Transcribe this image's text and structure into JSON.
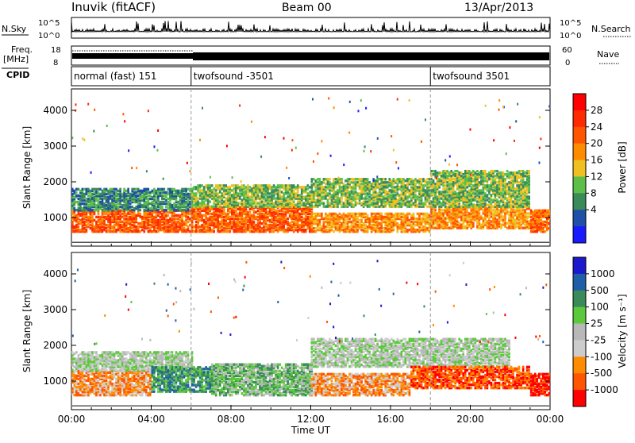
{
  "header": {
    "station": "Inuvik (fitACF)",
    "beam": "Beam 00",
    "date": "13/Apr/2013"
  },
  "top_panels": {
    "nsky_label": "N.Sky",
    "nsky_ticks": [
      "10^5",
      "10^0"
    ],
    "nsearch_label": "N.Search",
    "nsearch_ticks": [
      "10^5",
      "10^0"
    ],
    "freq_label": "Freq.",
    "freq_unit": "[MHz]",
    "freq_ticks": [
      "18",
      "8"
    ],
    "nave_label": "Nave",
    "nave_ticks": [
      "60",
      "0"
    ],
    "cpid_label": "CPID",
    "cpid_segments": [
      {
        "label": "normal (fast) 151",
        "start_hour": 0,
        "end_hour": 6
      },
      {
        "label": "twofsound -3501",
        "start_hour": 6,
        "end_hour": 18
      },
      {
        "label": "twofsound 3501",
        "start_hour": 18,
        "end_hour": 24
      }
    ]
  },
  "colors": {
    "power": [
      "#1a1aff",
      "#1f4fa8",
      "#3a8a5a",
      "#5bbf4a",
      "#f0c020",
      "#ff8c00",
      "#ff5500",
      "#ff2a00",
      "#ff0000"
    ],
    "velocity": [
      "#ff0000",
      "#ff5500",
      "#ff8c00",
      "#cccccc",
      "#b8b8b8",
      "#5cc93d",
      "#3a8a5a",
      "#1f5fa8",
      "#1a1acc"
    ]
  },
  "chart_data": [
    {
      "type": "heatmap",
      "name_ref": "power",
      "ylabel": "Slant Range [km]",
      "ylim": [
        200,
        4600
      ],
      "yticks": [
        1000,
        2000,
        3000,
        4000
      ],
      "xlim": [
        0,
        24
      ],
      "xticks": [
        "00:00",
        "04:00",
        "08:00",
        "12:00",
        "16:00",
        "20:00",
        "00:00"
      ],
      "colorbar_label": "Power [dB]",
      "colorbar_ticks": [
        "28",
        "24",
        "20",
        "16",
        "12",
        "8",
        "4"
      ],
      "bands": [
        {
          "range_km": [
            600,
            1200
          ],
          "hours": [
            0,
            6
          ],
          "level": 28
        },
        {
          "range_km": [
            1200,
            1800
          ],
          "hours": [
            0,
            6
          ],
          "level": 12
        },
        {
          "range_km": [
            600,
            1300
          ],
          "hours": [
            6,
            12
          ],
          "level": 28
        },
        {
          "range_km": [
            1300,
            1900
          ],
          "hours": [
            6,
            12
          ],
          "level": 16
        },
        {
          "range_km": [
            600,
            1100
          ],
          "hours": [
            12,
            18
          ],
          "level": 24
        },
        {
          "range_km": [
            1300,
            2100
          ],
          "hours": [
            12,
            18
          ],
          "level": 16
        },
        {
          "range_km": [
            700,
            1300
          ],
          "hours": [
            18,
            23
          ],
          "level": 24
        },
        {
          "range_km": [
            1300,
            2300
          ],
          "hours": [
            18,
            23
          ],
          "level": 16
        },
        {
          "range_km": [
            600,
            1200
          ],
          "hours": [
            23,
            24
          ],
          "level": 28
        }
      ]
    },
    {
      "type": "heatmap",
      "name_ref": "velocity",
      "ylabel": "Slant Range [km]",
      "ylim": [
        200,
        4600
      ],
      "yticks": [
        1000,
        2000,
        3000,
        4000
      ],
      "xlim": [
        0,
        24
      ],
      "xticks": [
        "00:00",
        "04:00",
        "08:00",
        "12:00",
        "16:00",
        "20:00",
        "00:00"
      ],
      "xlabel": "Time UT",
      "colorbar_label": "Velocity [m s⁻¹]",
      "colorbar_ticks": [
        "1000",
        "500",
        "100",
        "25",
        "-25",
        "-100",
        "-500",
        "-1000"
      ],
      "bands": [
        {
          "range_km": [
            600,
            1300
          ],
          "hours": [
            0,
            4
          ],
          "level": -100
        },
        {
          "range_km": [
            1300,
            1800
          ],
          "hours": [
            0,
            6
          ],
          "level": 25
        },
        {
          "range_km": [
            700,
            1400
          ],
          "hours": [
            4,
            7
          ],
          "level": 500
        },
        {
          "range_km": [
            600,
            1500
          ],
          "hours": [
            7,
            12
          ],
          "level": 100
        },
        {
          "range_km": [
            600,
            1200
          ],
          "hours": [
            12,
            17
          ],
          "level": -100
        },
        {
          "range_km": [
            1400,
            2200
          ],
          "hours": [
            12,
            22
          ],
          "level": 25
        },
        {
          "range_km": [
            800,
            1400
          ],
          "hours": [
            17,
            23
          ],
          "level": -500
        },
        {
          "range_km": [
            600,
            1200
          ],
          "hours": [
            23,
            24
          ],
          "level": -1000
        }
      ]
    }
  ]
}
